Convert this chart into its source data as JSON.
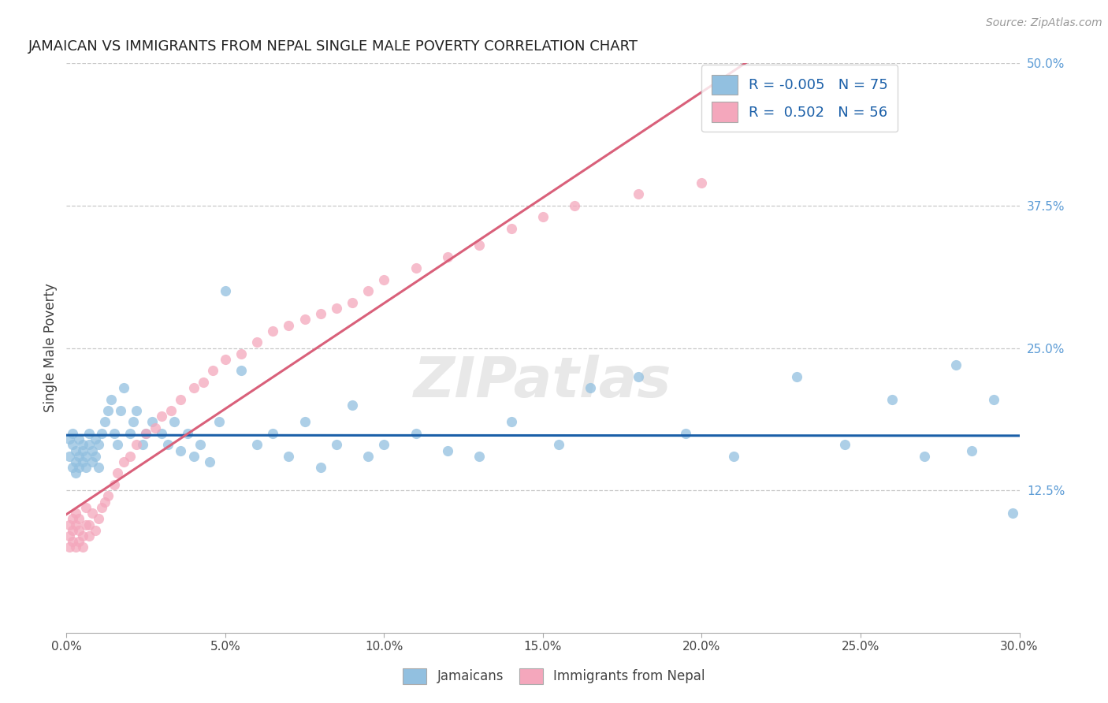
{
  "title": "JAMAICAN VS IMMIGRANTS FROM NEPAL SINGLE MALE POVERTY CORRELATION CHART",
  "source": "Source: ZipAtlas.com",
  "ylabel": "Single Male Poverty",
  "xlim": [
    0.0,
    0.3
  ],
  "ylim": [
    0.0,
    0.5
  ],
  "xticks": [
    0.0,
    0.05,
    0.1,
    0.15,
    0.2,
    0.25,
    0.3
  ],
  "yticks_right": [
    0.125,
    0.25,
    0.375,
    0.5
  ],
  "ytick_labels_right": [
    "12.5%",
    "25.0%",
    "37.5%",
    "50.0%"
  ],
  "blue_color": "#92c0e0",
  "pink_color": "#f4a7bc",
  "trend_blue": "#1a5fa8",
  "trend_pink": "#d9607a",
  "blue_R": -0.005,
  "pink_R": 0.502,
  "blue_N": 75,
  "pink_N": 56,
  "jamaicans_x": [
    0.001,
    0.001,
    0.002,
    0.002,
    0.002,
    0.003,
    0.003,
    0.003,
    0.004,
    0.004,
    0.004,
    0.005,
    0.005,
    0.005,
    0.006,
    0.006,
    0.007,
    0.007,
    0.008,
    0.008,
    0.009,
    0.009,
    0.01,
    0.01,
    0.011,
    0.012,
    0.013,
    0.014,
    0.015,
    0.016,
    0.017,
    0.018,
    0.02,
    0.021,
    0.022,
    0.024,
    0.025,
    0.027,
    0.03,
    0.032,
    0.034,
    0.036,
    0.038,
    0.04,
    0.042,
    0.045,
    0.048,
    0.05,
    0.055,
    0.06,
    0.065,
    0.07,
    0.075,
    0.08,
    0.085,
    0.09,
    0.095,
    0.1,
    0.11,
    0.12,
    0.13,
    0.14,
    0.155,
    0.165,
    0.18,
    0.195,
    0.21,
    0.23,
    0.245,
    0.26,
    0.27,
    0.28,
    0.285,
    0.292,
    0.298
  ],
  "jamaicans_y": [
    0.17,
    0.155,
    0.165,
    0.145,
    0.175,
    0.15,
    0.16,
    0.14,
    0.155,
    0.17,
    0.145,
    0.16,
    0.15,
    0.165,
    0.155,
    0.145,
    0.165,
    0.175,
    0.15,
    0.16,
    0.155,
    0.17,
    0.165,
    0.145,
    0.175,
    0.185,
    0.195,
    0.205,
    0.175,
    0.165,
    0.195,
    0.215,
    0.175,
    0.185,
    0.195,
    0.165,
    0.175,
    0.185,
    0.175,
    0.165,
    0.185,
    0.16,
    0.175,
    0.155,
    0.165,
    0.15,
    0.185,
    0.3,
    0.23,
    0.165,
    0.175,
    0.155,
    0.185,
    0.145,
    0.165,
    0.2,
    0.155,
    0.165,
    0.175,
    0.16,
    0.155,
    0.185,
    0.165,
    0.215,
    0.225,
    0.175,
    0.155,
    0.225,
    0.165,
    0.205,
    0.155,
    0.235,
    0.16,
    0.205,
    0.105
  ],
  "nepal_x": [
    0.001,
    0.001,
    0.001,
    0.002,
    0.002,
    0.002,
    0.003,
    0.003,
    0.003,
    0.004,
    0.004,
    0.004,
    0.005,
    0.005,
    0.006,
    0.006,
    0.007,
    0.007,
    0.008,
    0.009,
    0.01,
    0.011,
    0.012,
    0.013,
    0.015,
    0.016,
    0.018,
    0.02,
    0.022,
    0.025,
    0.028,
    0.03,
    0.033,
    0.036,
    0.04,
    0.043,
    0.046,
    0.05,
    0.055,
    0.06,
    0.065,
    0.07,
    0.075,
    0.08,
    0.085,
    0.09,
    0.095,
    0.1,
    0.11,
    0.12,
    0.13,
    0.14,
    0.15,
    0.16,
    0.18,
    0.2
  ],
  "nepal_y": [
    0.085,
    0.095,
    0.075,
    0.08,
    0.1,
    0.09,
    0.075,
    0.095,
    0.105,
    0.08,
    0.09,
    0.1,
    0.075,
    0.085,
    0.095,
    0.11,
    0.085,
    0.095,
    0.105,
    0.09,
    0.1,
    0.11,
    0.115,
    0.12,
    0.13,
    0.14,
    0.15,
    0.155,
    0.165,
    0.175,
    0.18,
    0.19,
    0.195,
    0.205,
    0.215,
    0.22,
    0.23,
    0.24,
    0.245,
    0.255,
    0.265,
    0.27,
    0.275,
    0.28,
    0.285,
    0.29,
    0.3,
    0.31,
    0.32,
    0.33,
    0.34,
    0.355,
    0.365,
    0.375,
    0.385,
    0.395
  ],
  "watermark": "ZIPatlas"
}
